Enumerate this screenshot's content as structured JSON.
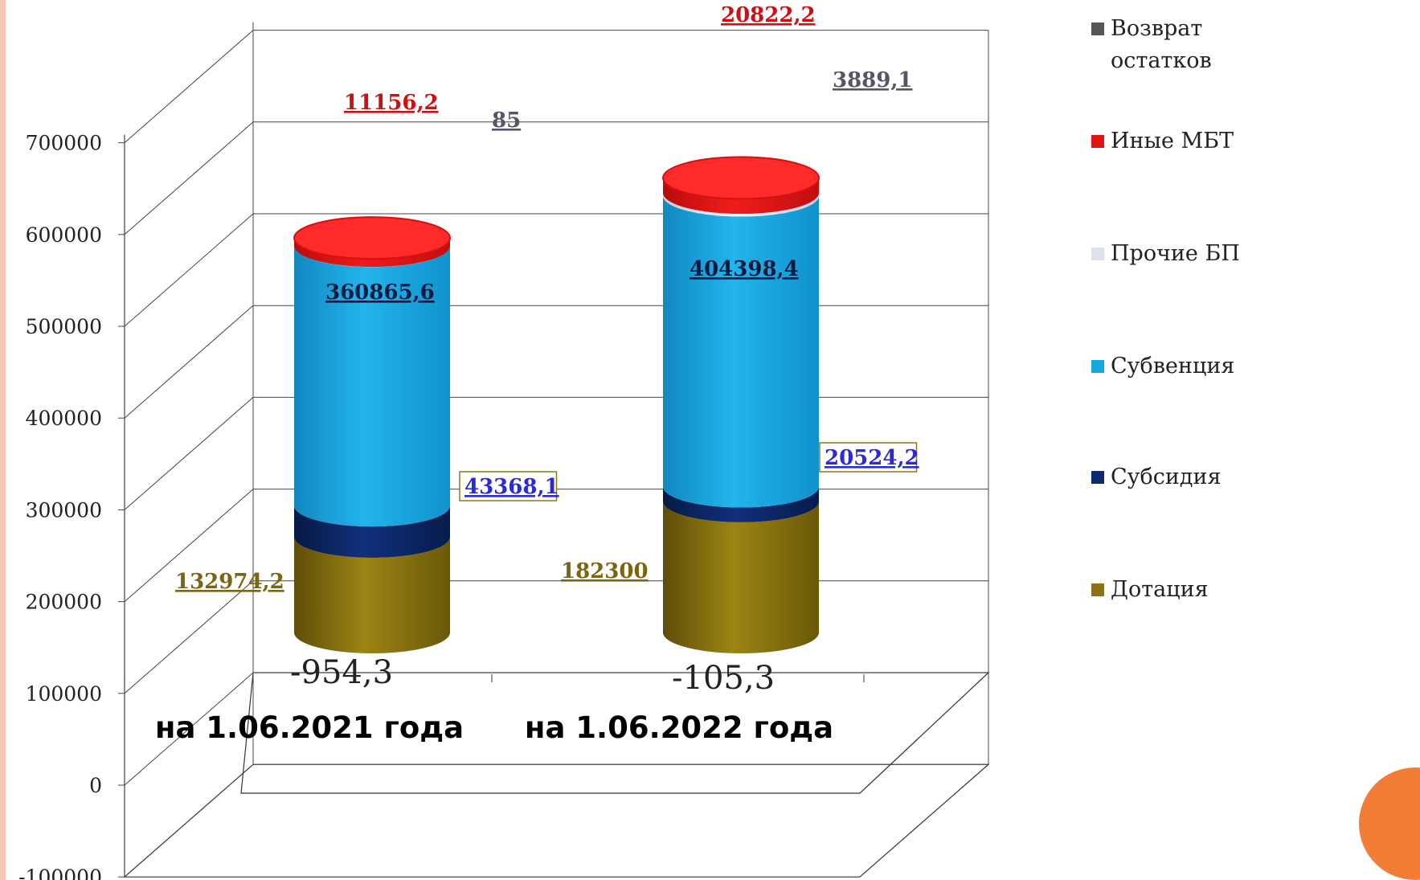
{
  "chart_data": {
    "type": "bar",
    "stacked": true,
    "three_d": true,
    "categories": [
      "на 1.06.2021 года",
      "на 1.06.2022 года"
    ],
    "ylim": [
      -100000,
      700000
    ],
    "yticks": [
      -100000,
      0,
      100000,
      200000,
      300000,
      400000,
      500000,
      600000,
      700000
    ],
    "ytick_labels": [
      "-100000",
      "0",
      "100000",
      "200000",
      "300000",
      "400000",
      "500000",
      "600000",
      "700000"
    ],
    "grid": true,
    "legend_position": "right",
    "series": [
      {
        "name": "Дотация",
        "color": "#8b7410",
        "label_color": "#7a6512",
        "values": [
          132974.2,
          182300
        ],
        "labels": [
          "132974,2",
          "182300"
        ]
      },
      {
        "name": "Субсидия",
        "color": "#0c2a6b",
        "label_color": "#2b2bd6",
        "values": [
          43368.1,
          20524.2
        ],
        "labels": [
          "43368,1",
          "20524,2"
        ]
      },
      {
        "name": "Субвенция",
        "color": "#18a8e0",
        "label_color": "#0d1a40",
        "values": [
          360865.6,
          404398.4
        ],
        "labels": [
          "360865,6",
          "404398,4"
        ]
      },
      {
        "name": "Прочие БП",
        "color": "#dde1ee",
        "label_color": "#555566",
        "values": [
          85,
          3889.1
        ],
        "labels": [
          "85",
          "3889,1"
        ]
      },
      {
        "name": "Иные МБТ",
        "color": "#e01414",
        "label_color": "#d01010",
        "values": [
          11156.2,
          20822.2
        ],
        "labels": [
          "11156,2",
          "20822,2"
        ]
      },
      {
        "name": "Возврат остатков",
        "color": "#555555",
        "label_color": "#222222",
        "values": [
          -954.3,
          -105.3
        ],
        "labels": [
          "-954,3",
          "-105,3"
        ]
      }
    ]
  }
}
